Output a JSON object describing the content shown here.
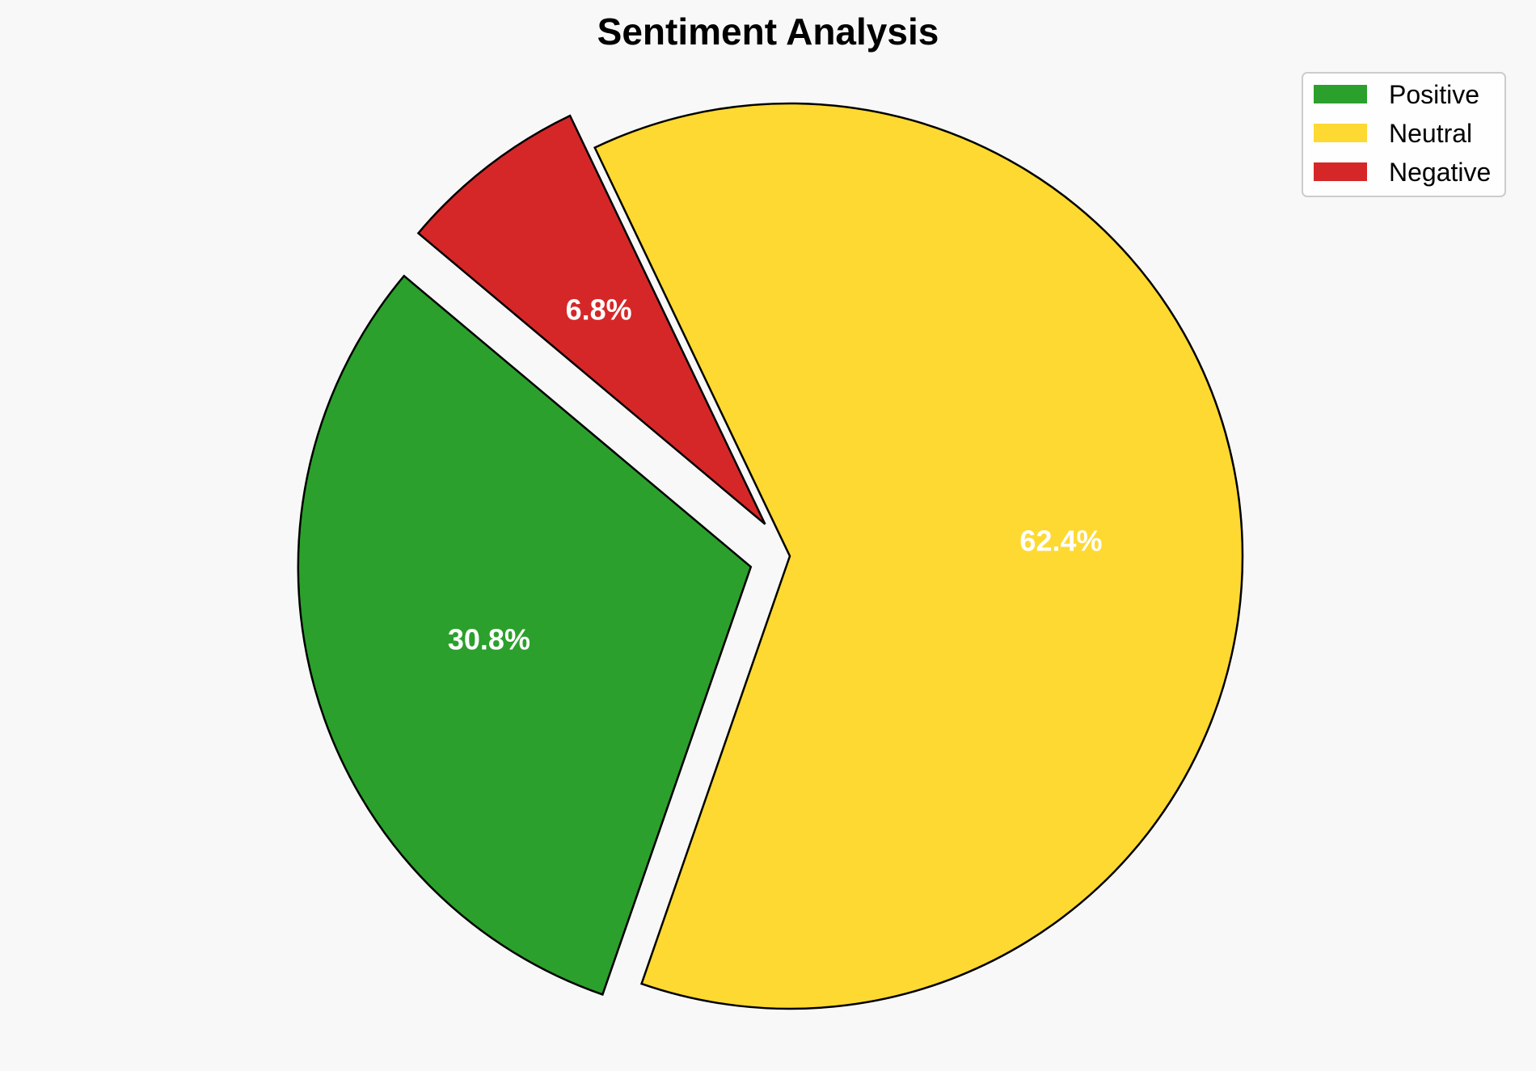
{
  "chart_data": {
    "type": "pie",
    "title": "Sentiment Analysis",
    "categories": [
      "Positive",
      "Neutral",
      "Negative"
    ],
    "values": [
      30.8,
      62.4,
      6.8
    ],
    "value_labels": [
      "30.8%",
      "62.4%",
      "6.8%"
    ],
    "colors": [
      "#2ca02c",
      "#fed931",
      "#d62728"
    ],
    "exploded": [
      true,
      false,
      true
    ],
    "start_angle_deg": 140,
    "direction": "counterclockwise",
    "legend_placement": "top-right"
  }
}
